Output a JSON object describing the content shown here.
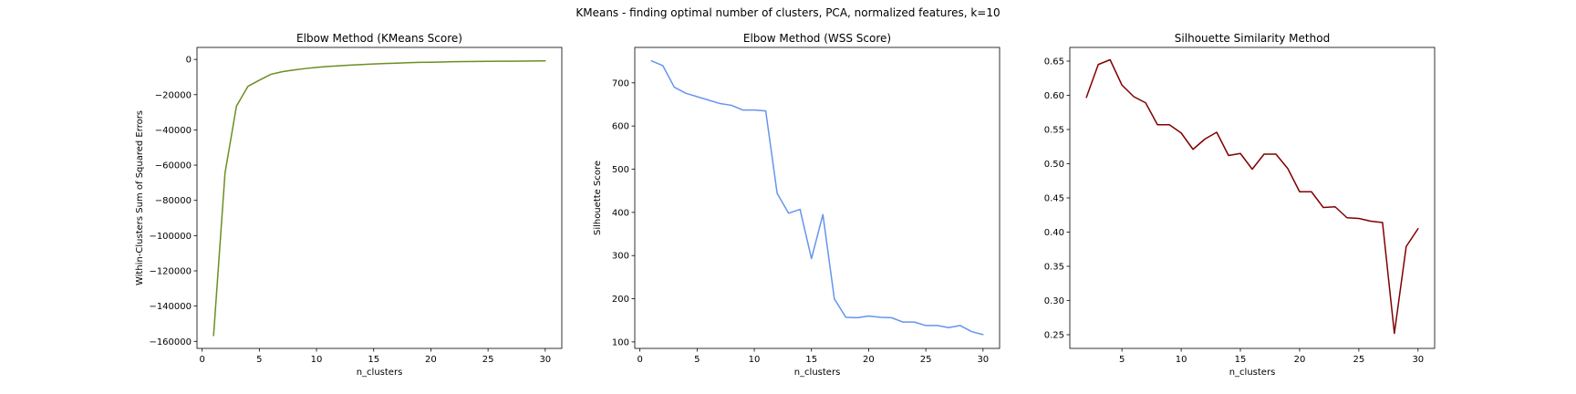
{
  "suptitle": "KMeans - finding optimal number of clusters, PCA, normalized features, k=10",
  "chart_data": [
    {
      "type": "line",
      "title": "Elbow Method (KMeans Score)",
      "xlabel": "n_clusters",
      "ylabel": "Within-Clusters Sum of Squared Errors",
      "xlim": [
        -0.45,
        31.45
      ],
      "ylim": [
        -164000,
        6800
      ],
      "xticks": [
        0,
        5,
        10,
        15,
        20,
        25,
        30
      ],
      "yticks": [
        0,
        -20000,
        -40000,
        -60000,
        -80000,
        -100000,
        -120000,
        -140000,
        -160000
      ],
      "ytick_labels": [
        "0",
        "−20000",
        "−40000",
        "−60000",
        "−80000",
        "−100000",
        "−120000",
        "−140000",
        "−160000"
      ],
      "grid": false,
      "color": "#6b8e23",
      "x": [
        1,
        2,
        3,
        4,
        5,
        6,
        7,
        8,
        9,
        10,
        11,
        12,
        13,
        14,
        15,
        16,
        17,
        18,
        19,
        20,
        21,
        22,
        23,
        24,
        25,
        26,
        27,
        28,
        29,
        30
      ],
      "y": [
        -156700,
        -64500,
        -26500,
        -15300,
        -11800,
        -8500,
        -7000,
        -6000,
        -5200,
        -4500,
        -4000,
        -3600,
        -3200,
        -2900,
        -2600,
        -2300,
        -2100,
        -1900,
        -1700,
        -1600,
        -1450,
        -1300,
        -1200,
        -1150,
        -1100,
        -1050,
        -1000,
        -950,
        -900,
        -850
      ]
    },
    {
      "type": "line",
      "title": "Elbow Method (WSS Score)",
      "xlabel": "n_clusters",
      "ylabel": "Silhouette Score",
      "xlim": [
        -0.45,
        31.45
      ],
      "ylim": [
        85,
        782
      ],
      "xticks": [
        0,
        5,
        10,
        15,
        20,
        25,
        30
      ],
      "yticks": [
        100,
        200,
        300,
        400,
        500,
        600,
        700
      ],
      "ytick_labels": [
        "100",
        "200",
        "300",
        "400",
        "500",
        "600",
        "700"
      ],
      "grid": false,
      "color": "#6495ed",
      "x": [
        1,
        2,
        3,
        4,
        5,
        6,
        7,
        8,
        9,
        10,
        11,
        12,
        13,
        14,
        15,
        16,
        17,
        18,
        19,
        20,
        21,
        22,
        23,
        24,
        25,
        26,
        27,
        28,
        29,
        30
      ],
      "y": [
        751,
        740,
        690,
        676,
        668,
        660,
        652,
        648,
        637,
        637,
        635,
        444,
        398,
        407,
        293,
        395,
        200,
        157,
        156,
        160,
        157,
        156,
        146,
        146,
        138,
        138,
        133,
        138,
        124,
        117
      ]
    },
    {
      "type": "line",
      "title": "Silhouette Similarity Method",
      "xlabel": "n_clusters",
      "ylabel": "",
      "xlim": [
        0.6,
        31.4
      ],
      "ylim": [
        0.23,
        0.67
      ],
      "xticks": [
        5,
        10,
        15,
        20,
        25,
        30
      ],
      "yticks": [
        0.25,
        0.3,
        0.35,
        0.4,
        0.45,
        0.5,
        0.55,
        0.6,
        0.65
      ],
      "ytick_labels": [
        "0.25",
        "0.30",
        "0.35",
        "0.40",
        "0.45",
        "0.50",
        "0.55",
        "0.60",
        "0.65"
      ],
      "grid": false,
      "color": "#800000",
      "x": [
        2,
        3,
        4,
        5,
        6,
        7,
        8,
        9,
        10,
        11,
        12,
        13,
        14,
        15,
        16,
        17,
        18,
        19,
        20,
        21,
        22,
        23,
        24,
        25,
        26,
        27,
        28,
        29,
        30
      ],
      "y": [
        0.597,
        0.645,
        0.652,
        0.615,
        0.598,
        0.589,
        0.557,
        0.557,
        0.545,
        0.521,
        0.536,
        0.546,
        0.512,
        0.515,
        0.492,
        0.514,
        0.514,
        0.493,
        0.459,
        0.459,
        0.436,
        0.437,
        0.421,
        0.42,
        0.416,
        0.414,
        0.252,
        0.379,
        0.405
      ]
    }
  ]
}
